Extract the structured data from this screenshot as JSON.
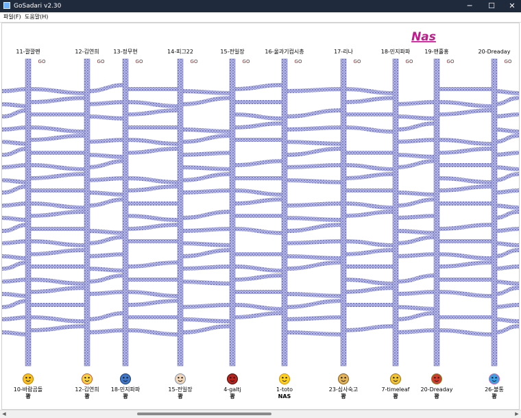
{
  "window": {
    "title": "GoSadari v2.30",
    "minimize_glyph": "─",
    "maximize_glyph": "☐",
    "close_glyph": "✕",
    "icon": "ladder-app-icon"
  },
  "menu": [
    {
      "label": "파일(F)"
    },
    {
      "label": "도움말(H)"
    }
  ],
  "winner_name": "Nas",
  "go_label": "GO",
  "columns": [
    {
      "top": "11-깔깔펜",
      "bottom": "10-바람곰돌",
      "result": "꽝",
      "icon": "smile-face-icon"
    },
    {
      "top": "12-김연희",
      "bottom": "12-김연희",
      "result": "꽝",
      "icon": "laughing-face-icon"
    },
    {
      "top": "13-정무현",
      "bottom": "18-민지파파",
      "result": "꽝",
      "icon": "blue-monster-icon"
    },
    {
      "top": "14-피그22",
      "bottom": "15-전일장",
      "result": "꽝",
      "icon": "girl-portrait-icon"
    },
    {
      "top": "15-전일장",
      "bottom": "4-galtj",
      "result": "꽝",
      "icon": "red-beetle-icon"
    },
    {
      "top": "16-울과기컴시총",
      "bottom": "1-toto",
      "result": "NAS",
      "icon": "yellow-chick-icon"
    },
    {
      "top": "17-리나",
      "bottom": "23-심사숙고",
      "result": "꽝",
      "icon": "gold-trophy-icon"
    },
    {
      "top": "18-민지파파",
      "bottom": "7-timeleaf",
      "result": "꽝",
      "icon": "cartoon-bear-icon"
    },
    {
      "top": "19-맨홀홍",
      "bottom": "20-Dreaday",
      "result": "꽝",
      "icon": "burger-face-icon"
    },
    {
      "top": "20-Dreaday",
      "bottom": "26-불통",
      "result": "꽝",
      "icon": "colorful-star-icon"
    }
  ],
  "colors": {
    "rail": "#7c7fbd",
    "rail_fill": "#aeb1e2",
    "accent": "#c21a8c",
    "go": "#8a2020",
    "titlebar": "#1f2a3d"
  }
}
